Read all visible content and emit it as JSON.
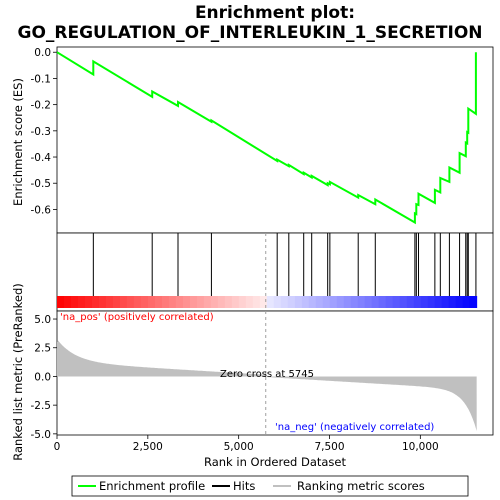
{
  "chart_data": {
    "type": "line",
    "title_line1": "Enrichment plot:",
    "title_line2": "GO_REGULATION_OF_INTERLEUKIN_1_SECRETION",
    "top_ylabel": "Enrichment score (ES)",
    "bottom_ylabel": "Ranked list metric (PreRanked)",
    "xlabel": "Rank in Ordered Dataset",
    "xlim": [
      0,
      12000
    ],
    "top_ylim": [
      -0.69,
      0.02
    ],
    "bottom_ylim": [
      -5.1,
      5.7
    ],
    "x_ticks": [
      0,
      2500,
      5000,
      7500,
      10000
    ],
    "x_tick_labels": [
      "0",
      "2,500",
      "5,000",
      "7,500",
      "10,000"
    ],
    "top_y_ticks": [
      0.0,
      -0.1,
      -0.2,
      -0.3,
      -0.4,
      -0.5,
      -0.6
    ],
    "top_y_tick_labels": [
      "0.0",
      "-0.1",
      "-0.2",
      "-0.3",
      "-0.4",
      "-0.5",
      "-0.6"
    ],
    "bottom_y_ticks": [
      5.0,
      2.5,
      0.0,
      -2.5,
      -5.0
    ],
    "bottom_y_tick_labels": [
      "5.0",
      "2.5",
      "0.0",
      "-2.5",
      "-5.0"
    ],
    "n_genes": 11550,
    "zero_cross": 5745,
    "zero_cross_label": "Zero cross at 5745",
    "pos_label": "'na_pos' (positively correlated)",
    "neg_label": "'na_neg' (negatively correlated)",
    "hits": [
      1000,
      2620,
      3330,
      4250,
      6060,
      6380,
      6790,
      7010,
      7450,
      7510,
      8290,
      8760,
      9850,
      9890,
      9950,
      10400,
      10550,
      10800,
      11080,
      11250,
      11290,
      11320,
      11530
    ],
    "es_curve": {
      "x": [
        0,
        1000,
        1000,
        2620,
        2620,
        3330,
        3330,
        4250,
        4250,
        6060,
        6060,
        6380,
        6380,
        6790,
        6790,
        7010,
        7010,
        7450,
        7450,
        7510,
        7510,
        8290,
        8290,
        8760,
        8760,
        9850,
        9850,
        9890,
        9890,
        9950,
        9950,
        10400,
        10400,
        10550,
        10550,
        10800,
        10800,
        11080,
        11080,
        11250,
        11250,
        11290,
        11290,
        11320,
        11320,
        11530,
        11530
      ],
      "y": [
        0.0,
        -0.085,
        -0.035,
        -0.17,
        -0.15,
        -0.205,
        -0.19,
        -0.265,
        -0.26,
        -0.415,
        -0.41,
        -0.435,
        -0.43,
        -0.465,
        -0.46,
        -0.478,
        -0.472,
        -0.507,
        -0.5,
        -0.504,
        -0.495,
        -0.555,
        -0.545,
        -0.58,
        -0.562,
        -0.65,
        -0.615,
        -0.618,
        -0.58,
        -0.583,
        -0.54,
        -0.575,
        -0.525,
        -0.535,
        -0.48,
        -0.495,
        -0.44,
        -0.46,
        -0.385,
        -0.397,
        -0.345,
        -0.348,
        -0.305,
        -0.307,
        -0.215,
        -0.235,
        0.0
      ]
    },
    "colors": {
      "es_line": "#00ff00",
      "hit": "#000000",
      "metric_fill": "#c0c0c0",
      "pos_text": "#ff0000",
      "neg_text": "#0000ff",
      "zero_line": "#a0a0a0"
    }
  },
  "legend": {
    "items": [
      {
        "label": "Enrichment profile",
        "color": "#00ff00"
      },
      {
        "label": "Hits",
        "color": "#000000"
      },
      {
        "label": "Ranking metric scores",
        "color": "#c0c0c0"
      }
    ]
  }
}
